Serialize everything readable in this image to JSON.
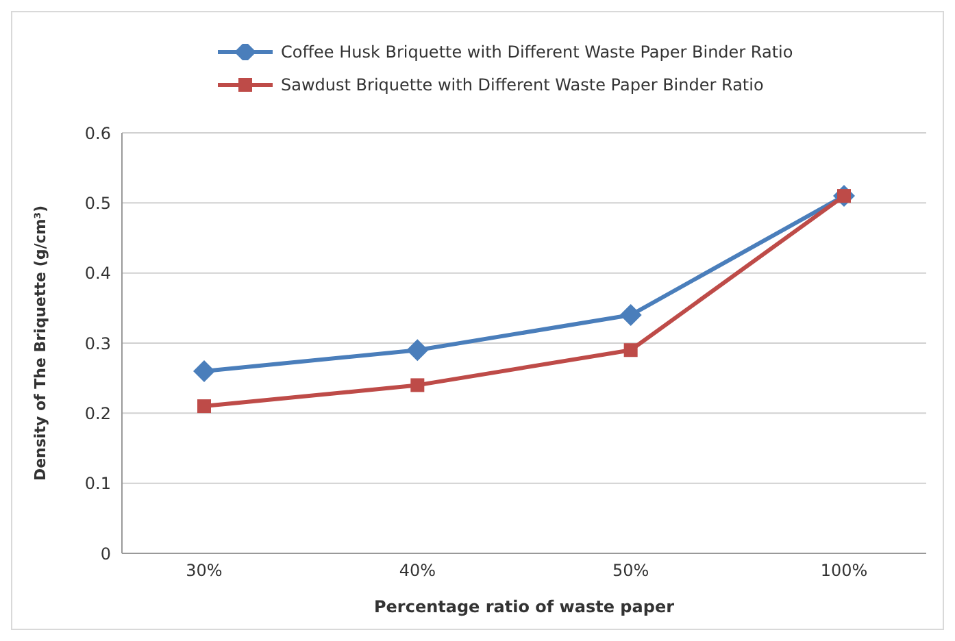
{
  "chart_data": {
    "type": "line",
    "xlabel": "Percentage ratio of waste paper",
    "ylabel": "Density of The Briquette (g/cm³)",
    "categories": [
      "30%",
      "40%",
      "50%",
      "100%"
    ],
    "series": [
      {
        "name": "Coffee Husk Briquette with Different Waste Paper Binder Ratio",
        "color": "#4a7ebb",
        "marker": "diamond",
        "values": [
          0.26,
          0.29,
          0.34,
          0.51
        ]
      },
      {
        "name": "Sawdust Briquette with Different Waste Paper Binder Ratio",
        "color": "#be4b48",
        "marker": "square",
        "values": [
          0.21,
          0.24,
          0.29,
          0.51
        ]
      }
    ],
    "ylim": [
      0,
      0.6
    ],
    "yticks": [
      0,
      0.1,
      0.2,
      0.3,
      0.4,
      0.5,
      0.6
    ],
    "grid": "y",
    "legend": "top"
  }
}
